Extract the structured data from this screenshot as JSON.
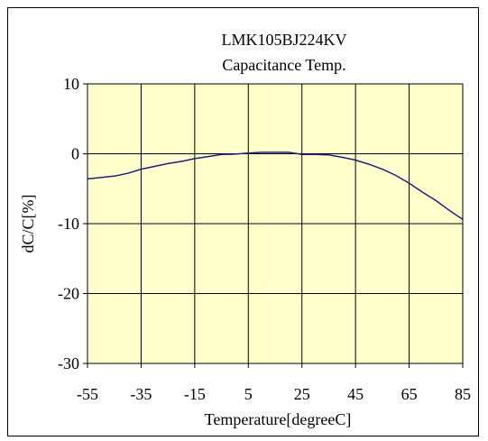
{
  "chart_data": {
    "type": "line",
    "title": "LMK105BJ224KV",
    "subtitle": "Capacitance Temp.",
    "xlabel": "Temperature[degreeC]",
    "ylabel": "dC/C[%]",
    "xlim": [
      -55,
      85
    ],
    "ylim": [
      -30,
      10
    ],
    "xticks": [
      -55,
      -35,
      -15,
      5,
      25,
      45,
      65,
      85
    ],
    "yticks": [
      10,
      0,
      -10,
      -20,
      -30
    ],
    "xtick_labels": [
      "-55",
      "-35",
      "-15",
      "5",
      "25",
      "45",
      "65",
      "85"
    ],
    "ytick_labels": [
      "10",
      "0",
      "-10",
      "-20",
      "-30"
    ],
    "grid": true,
    "legend": "none",
    "series": [
      {
        "x": [
          -55,
          -45,
          -40,
          -35,
          -30,
          -25,
          -20,
          -15,
          -10,
          -5,
          0,
          5,
          10,
          15,
          20,
          25,
          30,
          35,
          40,
          45,
          50,
          55,
          60,
          65,
          70,
          75,
          80,
          85
        ],
        "y": [
          -3.6,
          -3.2,
          -2.8,
          -2.2,
          -1.8,
          -1.4,
          -1.1,
          -0.7,
          -0.4,
          -0.1,
          -0.05,
          0.1,
          0.2,
          0.2,
          0.2,
          -0.1,
          -0.1,
          -0.15,
          -0.5,
          -0.9,
          -1.5,
          -2.2,
          -3.1,
          -4.2,
          -5.5,
          -6.7,
          -8.1,
          -9.4
        ]
      }
    ],
    "colors": {
      "plot_background": "#FFFFCC",
      "line": "#1F1F7A",
      "grid": "#000000"
    }
  }
}
